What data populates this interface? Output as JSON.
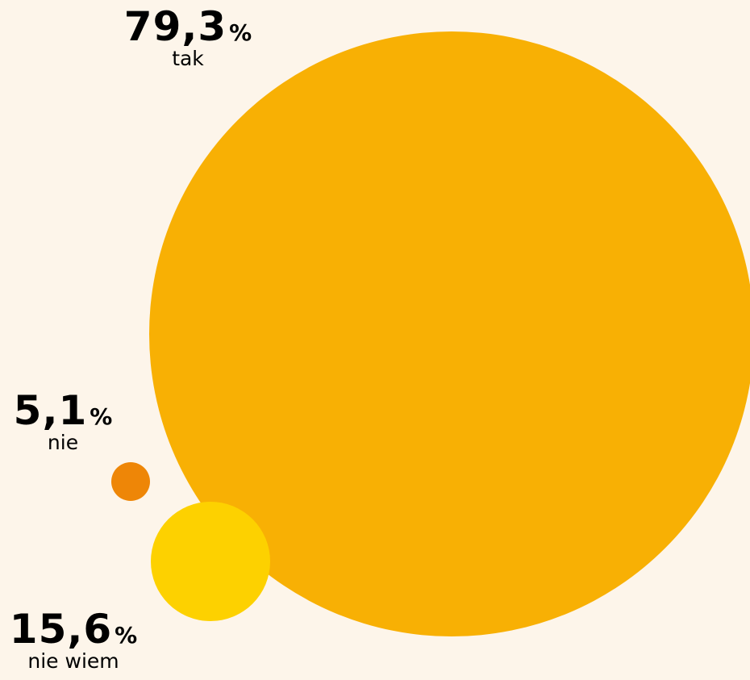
{
  "chart_data": {
    "type": "bubble",
    "title": "",
    "unit": "%",
    "series": [
      {
        "category": "tak",
        "value": 79.3,
        "value_label": "79,3",
        "color": "#f8b004"
      },
      {
        "category": "nie",
        "value": 5.1,
        "value_label": "5,1",
        "color": "#ee8607"
      },
      {
        "category": "nie wiem",
        "value": 15.6,
        "value_label": "15,6",
        "color": "#fdd100"
      }
    ]
  }
}
